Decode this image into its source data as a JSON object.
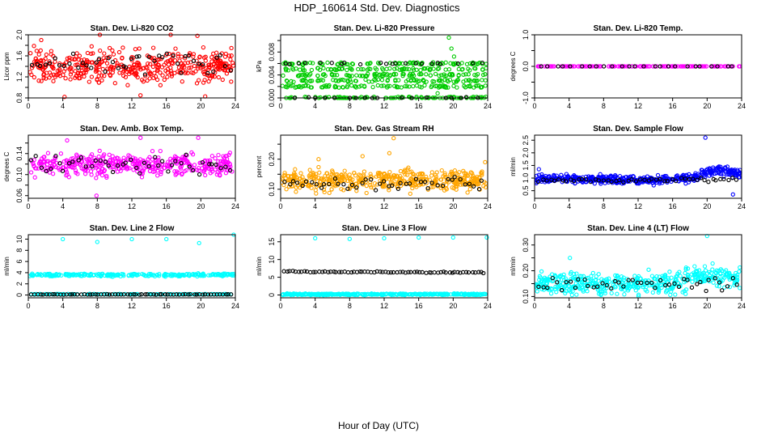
{
  "figure": {
    "title": "HDP_160614  Std. Dev. Diagnostics",
    "xlabel": "Hour of Day (UTC)"
  },
  "chart_data": [
    {
      "type": "scatter",
      "title": "Stan. Dev. Li-820 CO2",
      "ylabel": "Licor ppm",
      "xlim": [
        0,
        24
      ],
      "xticks": [
        0,
        4,
        8,
        12,
        16,
        20,
        24
      ],
      "ylim": [
        0.8,
        2.0
      ],
      "yticks": [
        0.8,
        1.0,
        1.2,
        1.4,
        1.6,
        1.8,
        2.0
      ],
      "ytick_labels": [
        "0.8",
        "",
        "1.2",
        "",
        "1.6",
        "",
        "2.0"
      ],
      "color": "#ff0000",
      "n": 420,
      "base": [
        [
          0,
          1.4
        ],
        [
          24,
          1.4
        ]
      ],
      "spread": 0.45,
      "black_base": [
        [
          0,
          1.45
        ],
        [
          24,
          1.45
        ]
      ],
      "black_spread": 0.3,
      "black_n": 45,
      "outliers": [
        [
          1.5,
          1.9
        ],
        [
          8.3,
          2.0
        ],
        [
          16.5,
          2.0
        ],
        [
          19.6,
          1.98
        ],
        [
          4.2,
          0.82
        ],
        [
          13,
          0.85
        ],
        [
          20.5,
          0.83
        ]
      ]
    },
    {
      "type": "scatter",
      "title": "Stan. Dev. Li-820 Pressure",
      "ylabel": "kPa",
      "xlim": [
        0,
        24
      ],
      "xticks": [
        0,
        4,
        8,
        12,
        16,
        20,
        24
      ],
      "ylim": [
        0.0,
        0.011
      ],
      "yticks": [
        0.0,
        0.002,
        0.004,
        0.006,
        0.008,
        0.01
      ],
      "ytick_labels": [
        "0.000",
        "",
        "0.004",
        "",
        "0.008",
        ""
      ],
      "color": "#00cc00",
      "n": 520,
      "levels": [
        0.0,
        0.002,
        0.003,
        0.004,
        0.005,
        0.006
      ],
      "black_levels": [
        0.0,
        0.006
      ],
      "black_n": 40,
      "outliers": [
        [
          19.5,
          0.0105
        ],
        [
          19.8,
          0.0086
        ],
        [
          20.1,
          0.0072
        ],
        [
          18.2,
          0.0008
        ]
      ]
    },
    {
      "type": "scatter",
      "title": "Stan. Dev. Li-820 Temp.",
      "ylabel": "degrees C",
      "xlim": [
        0,
        24
      ],
      "xticks": [
        0,
        4,
        8,
        12,
        16,
        20,
        24
      ],
      "ylim": [
        -1,
        1
      ],
      "yticks": [
        -1.0,
        -0.5,
        0.0,
        0.5,
        1.0
      ],
      "ytick_labels": [
        "-1.0",
        "",
        "0.0",
        "",
        "1.0"
      ],
      "color": "#ff00ff",
      "n": 150,
      "base": [
        [
          0,
          0
        ],
        [
          24,
          0
        ]
      ],
      "spread": 0,
      "black_base": [
        [
          0,
          0
        ],
        [
          24,
          0
        ]
      ],
      "black_spread": 0,
      "black_n": 25,
      "outliers": []
    },
    {
      "type": "scatter",
      "title": "Stan. Dev. Amb. Box Temp.",
      "ylabel": "degrees C",
      "xlim": [
        0,
        24
      ],
      "xticks": [
        0,
        4,
        8,
        12,
        16,
        20,
        24
      ],
      "ylim": [
        0.055,
        0.175
      ],
      "yticks": [
        0.06,
        0.08,
        0.1,
        0.12,
        0.14,
        0.16
      ],
      "ytick_labels": [
        "0.06",
        "",
        "0.10",
        "",
        "0.14",
        ""
      ],
      "color": "#ff00ff",
      "n": 420,
      "base": [
        [
          0,
          0.12
        ],
        [
          24,
          0.118
        ]
      ],
      "spread": 0.03,
      "black_base": [
        [
          0,
          0.12
        ],
        [
          24,
          0.12
        ]
      ],
      "black_spread": 0.025,
      "black_n": 45,
      "outliers": [
        [
          4.5,
          0.165
        ],
        [
          7.9,
          0.06
        ],
        [
          13,
          0.17
        ],
        [
          19.7,
          0.17
        ]
      ]
    },
    {
      "type": "scatter",
      "title": "Stan. Dev. Gas Stream RH",
      "ylabel": "percent",
      "xlim": [
        0,
        24
      ],
      "xticks": [
        0,
        4,
        8,
        12,
        16,
        20,
        24
      ],
      "ylim": [
        0.07,
        0.28
      ],
      "yticks": [
        0.1,
        0.15,
        0.2,
        0.25
      ],
      "ytick_labels": [
        "0.10",
        "",
        "0.20",
        ""
      ],
      "color": "#ffa500",
      "n": 460,
      "base": [
        [
          0,
          0.13
        ],
        [
          24,
          0.13
        ]
      ],
      "spread": 0.05,
      "black_base": [
        [
          0,
          0.12
        ],
        [
          24,
          0.12
        ]
      ],
      "black_spread": 0.03,
      "black_n": 45,
      "outliers": [
        [
          13.1,
          0.27
        ],
        [
          12.6,
          0.22
        ],
        [
          4.4,
          0.2
        ],
        [
          9.5,
          0.21
        ],
        [
          23.7,
          0.19
        ]
      ]
    },
    {
      "type": "scatter",
      "title": "Stan. Dev. Sample Flow",
      "ylabel": "ml/min",
      "xlim": [
        0,
        24
      ],
      "xticks": [
        0,
        4,
        8,
        12,
        16,
        20,
        24
      ],
      "ylim": [
        0.2,
        2.7
      ],
      "yticks": [
        0.5,
        1.0,
        1.5,
        2.0,
        2.5
      ],
      "ytick_labels": [
        "0.5",
        "1.0",
        "1.5",
        "2.0",
        "2.5"
      ],
      "color": "#0000ff",
      "n": 460,
      "base": [
        [
          0,
          1.0
        ],
        [
          14,
          0.9
        ],
        [
          18,
          1.0
        ],
        [
          21,
          1.3
        ],
        [
          24,
          1.2
        ]
      ],
      "spread": 0.25,
      "black_base": [
        [
          0,
          0.9
        ],
        [
          24,
          0.95
        ]
      ],
      "black_spread": 0.12,
      "black_n": 50,
      "outliers": [
        [
          19.8,
          2.6
        ],
        [
          23,
          0.35
        ],
        [
          0.5,
          1.35
        ]
      ]
    },
    {
      "type": "scatter",
      "title": "Stan. Dev. Line 2 Flow",
      "ylabel": "ml/min",
      "xlim": [
        0,
        24
      ],
      "xticks": [
        0,
        4,
        8,
        12,
        16,
        20,
        24
      ],
      "ylim": [
        -0.5,
        10.8
      ],
      "yticks": [
        0,
        2,
        4,
        6,
        8,
        10
      ],
      "ytick_labels": [
        "0",
        "2",
        "4",
        "6",
        "8",
        "10"
      ],
      "color": "#00ffff",
      "n": 360,
      "base": [
        [
          0,
          3.6
        ],
        [
          24,
          3.6
        ]
      ],
      "spread": 0.35,
      "black_base": [
        [
          0,
          0.1
        ],
        [
          24,
          0.1
        ]
      ],
      "black_spread": 0.05,
      "black_n": 70,
      "cyan_low": true,
      "outliers": [
        [
          4,
          10
        ],
        [
          8,
          9.5
        ],
        [
          12,
          10
        ],
        [
          16,
          10
        ],
        [
          19.8,
          9.3
        ],
        [
          23.8,
          10.8
        ]
      ]
    },
    {
      "type": "scatter",
      "title": "Stan. Dev. Line 3 Flow",
      "ylabel": "ml/min",
      "xlim": [
        0,
        24
      ],
      "xticks": [
        0,
        4,
        8,
        12,
        16,
        20,
        24
      ],
      "ylim": [
        -0.8,
        17
      ],
      "yticks": [
        0,
        5,
        10,
        15
      ],
      "ytick_labels": [
        "0",
        "5",
        "10",
        "15"
      ],
      "color": "#00ffff",
      "n": 360,
      "base": [
        [
          0,
          0.2
        ],
        [
          24,
          0.2
        ]
      ],
      "spread": 0.3,
      "black_base": [
        [
          0,
          6.6
        ],
        [
          24,
          6.3
        ]
      ],
      "black_spread": 0.25,
      "black_n": 70,
      "cyan_mid": true,
      "outliers": [
        [
          4,
          16
        ],
        [
          8,
          15.8
        ],
        [
          12,
          16
        ],
        [
          16,
          16.2
        ],
        [
          20,
          16.2
        ],
        [
          23.9,
          16.2
        ]
      ]
    },
    {
      "type": "scatter",
      "title": "Stan. Dev. Line 4 (LT) Flow",
      "ylabel": "ml/min",
      "xlim": [
        0,
        24
      ],
      "xticks": [
        0,
        4,
        8,
        12,
        16,
        20,
        24
      ],
      "ylim": [
        0.095,
        0.34
      ],
      "yticks": [
        0.1,
        0.15,
        0.2,
        0.25,
        0.3
      ],
      "ytick_labels": [
        "0.10",
        "",
        "0.20",
        "",
        "0.30"
      ],
      "color": "#00ffff",
      "n": 460,
      "base": [
        [
          0,
          0.15
        ],
        [
          16,
          0.15
        ],
        [
          20,
          0.18
        ],
        [
          24,
          0.17
        ]
      ],
      "spread": 0.06,
      "black_base": [
        [
          0,
          0.145
        ],
        [
          24,
          0.15
        ]
      ],
      "black_spread": 0.04,
      "black_n": 45,
      "outliers": [
        [
          4.1,
          0.25
        ],
        [
          20,
          0.335
        ],
        [
          17.5,
          0.11
        ]
      ]
    }
  ]
}
